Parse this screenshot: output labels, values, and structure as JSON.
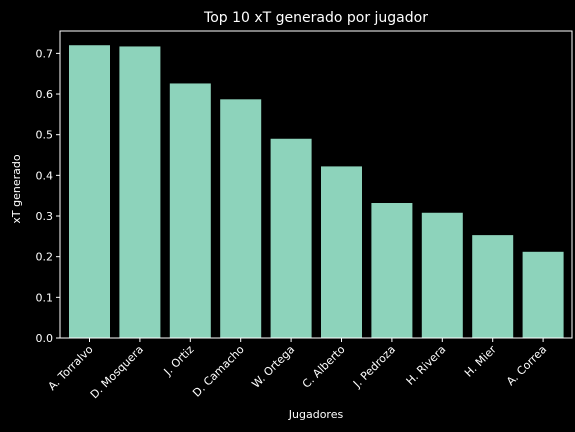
{
  "chart_data": {
    "type": "bar",
    "title": "Top 10 xT generado por jugador",
    "xlabel": "Jugadores",
    "ylabel": "xT generado",
    "categories": [
      "A. Torralvo",
      "D. Mosquera",
      "J. Ortiz",
      "D. Camacho",
      "W. Ortega",
      "C. Alberto",
      "J. Pedroza",
      "H. Rivera",
      "H. Mier",
      "A. Correa"
    ],
    "values": [
      0.72,
      0.717,
      0.626,
      0.587,
      0.49,
      0.422,
      0.332,
      0.308,
      0.253,
      0.212
    ],
    "yticks": [
      "0.0",
      "0.1",
      "0.2",
      "0.3",
      "0.4",
      "0.5",
      "0.6",
      "0.7"
    ],
    "ylim": [
      0,
      0.755
    ],
    "grid": false,
    "colors": {
      "background": "#000000",
      "bar": "#8dd3bb",
      "text": "#ffffff",
      "axis": "#ffffff"
    }
  }
}
